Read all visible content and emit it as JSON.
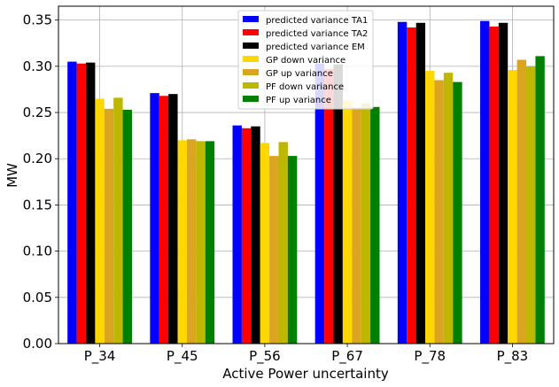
{
  "chart_data": {
    "type": "bar",
    "title": "",
    "xlabel": "Active Power uncertainty",
    "ylabel": "MW",
    "ylim": [
      0,
      0.365
    ],
    "yticks": [
      "0.00",
      "0.05",
      "0.10",
      "0.15",
      "0.20",
      "0.25",
      "0.30",
      "0.35"
    ],
    "grid": true,
    "legend_position": "top-center",
    "categories": [
      "P_34",
      "P_45",
      "P_56",
      "P_67",
      "P_78",
      "P_83"
    ],
    "series": [
      {
        "name": "predicted variance TA1",
        "color": "#0000ff",
        "values": [
          0.305,
          0.271,
          0.236,
          0.303,
          0.348,
          0.349
        ]
      },
      {
        "name": "predicted variance TA2",
        "color": "#ff0000",
        "values": [
          0.303,
          0.268,
          0.233,
          0.297,
          0.342,
          0.343
        ]
      },
      {
        "name": "predicted variance EM",
        "color": "#000000",
        "values": [
          0.304,
          0.27,
          0.235,
          0.302,
          0.347,
          0.347
        ]
      },
      {
        "name": "GP down variance",
        "color": "#ffd700",
        "values": [
          0.265,
          0.22,
          0.217,
          0.263,
          0.295,
          0.296
        ]
      },
      {
        "name": "GP up variance",
        "color": "#daa520",
        "values": [
          0.254,
          0.221,
          0.203,
          0.256,
          0.285,
          0.307
        ]
      },
      {
        "name": "PF down variance",
        "color": "#bdb700",
        "values": [
          0.266,
          0.219,
          0.218,
          0.26,
          0.293,
          0.3
        ]
      },
      {
        "name": "PF up variance",
        "color": "#008000",
        "values": [
          0.253,
          0.219,
          0.203,
          0.256,
          0.283,
          0.311
        ]
      }
    ]
  }
}
